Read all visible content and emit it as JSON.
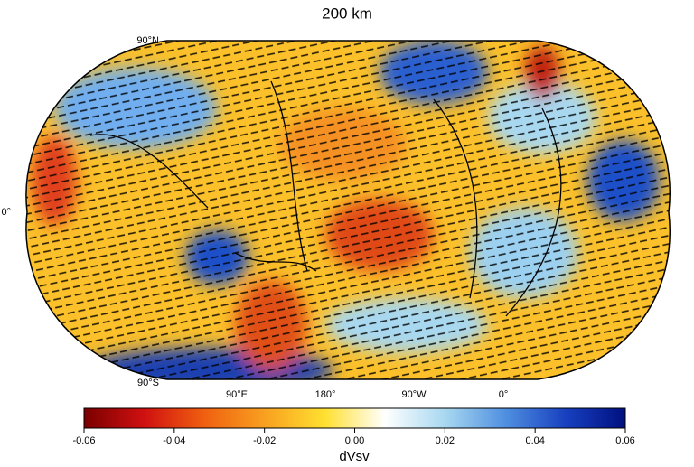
{
  "title": "200 km",
  "latitude_labels": [
    "90°N",
    "0°",
    "90°S"
  ],
  "longitude_labels": [
    "90°E",
    "180°",
    "90°W",
    "0°"
  ],
  "colorbar": {
    "label": "dVsv",
    "range": [
      -0.06,
      0.06
    ],
    "colors": [
      "#7a0000",
      "#d01010",
      "#f06010",
      "#f8a020",
      "#ffe030",
      "#ffffff",
      "#a8d8f0",
      "#5090e0",
      "#1840c0",
      "#001080"
    ],
    "ticks": [
      -0.06,
      -0.04,
      -0.02,
      {
        "value": 0,
        "label": "0.00"
      },
      0.02,
      0.04,
      0.06
    ]
  }
}
